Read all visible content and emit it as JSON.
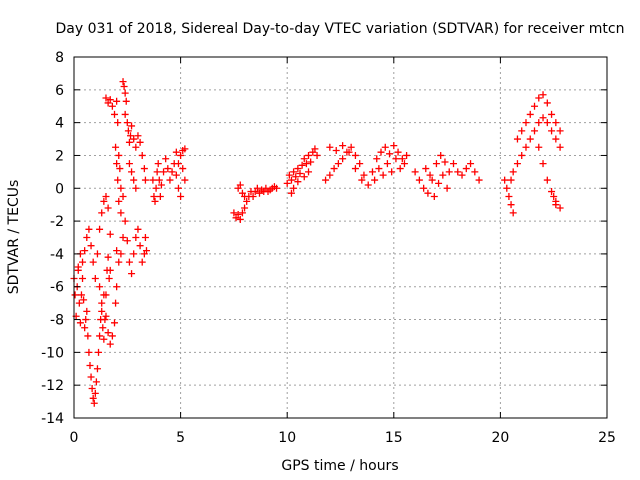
{
  "chart_data": {
    "type": "scatter",
    "title": "Day 031 of 2018, Sidereal Day-to-day VTEC variation (SDTVAR) for receiver mtcn",
    "xlabel": "GPS time / hours",
    "ylabel": "SDTVAR / TECUs",
    "xlim": [
      0,
      25
    ],
    "ylim": [
      -14,
      8
    ],
    "xticks": [
      0,
      5,
      10,
      15,
      20,
      25
    ],
    "xtick_labels": [
      "0",
      "5",
      "10",
      "15",
      "20",
      "25"
    ],
    "yticks": [
      -14,
      -12,
      -10,
      -8,
      -6,
      -4,
      -2,
      0,
      2,
      4,
      6,
      8
    ],
    "ytick_labels": [
      "-14",
      "-12",
      "-10",
      "-8",
      "-6",
      "-4",
      "-2",
      "0",
      "2",
      "4",
      "6",
      "8"
    ],
    "grid": true,
    "marker": "+",
    "color": "#ff0000",
    "series": [
      {
        "name": "SDTVAR",
        "points": [
          [
            0.0,
            -5.5
          ],
          [
            0.05,
            -6.5
          ],
          [
            0.1,
            -7.8
          ],
          [
            0.15,
            -6.0
          ],
          [
            0.2,
            -5.0
          ],
          [
            0.25,
            -7.0
          ],
          [
            0.3,
            -8.2
          ],
          [
            0.35,
            -6.5
          ],
          [
            0.4,
            -5.5
          ],
          [
            0.45,
            -6.8
          ],
          [
            0.5,
            -8.5
          ],
          [
            0.55,
            -8.0
          ],
          [
            0.6,
            -7.5
          ],
          [
            0.65,
            -9.0
          ],
          [
            0.7,
            -10.0
          ],
          [
            0.75,
            -10.8
          ],
          [
            0.8,
            -11.5
          ],
          [
            0.85,
            -12.2
          ],
          [
            0.9,
            -12.8
          ],
          [
            0.95,
            -13.1
          ],
          [
            1.0,
            -12.5
          ],
          [
            1.05,
            -11.8
          ],
          [
            1.1,
            -11.0
          ],
          [
            1.15,
            -10.0
          ],
          [
            1.2,
            -9.0
          ],
          [
            1.25,
            -8.0
          ],
          [
            1.3,
            -7.0
          ],
          [
            1.35,
            -8.5
          ],
          [
            1.4,
            -9.2
          ],
          [
            1.45,
            -8.0
          ],
          [
            1.5,
            -6.5
          ],
          [
            1.55,
            -5.0
          ],
          [
            1.6,
            -4.2
          ],
          [
            1.65,
            -5.5
          ],
          [
            1.7,
            -5.0
          ],
          [
            0.2,
            -4.8
          ],
          [
            0.3,
            -4.0
          ],
          [
            0.4,
            -4.5
          ],
          [
            0.5,
            -3.8
          ],
          [
            0.6,
            -3.0
          ],
          [
            0.7,
            -2.5
          ],
          [
            0.8,
            -3.5
          ],
          [
            0.9,
            -4.5
          ],
          [
            1.0,
            -5.5
          ],
          [
            1.1,
            -4.0
          ],
          [
            1.2,
            -2.5
          ],
          [
            1.3,
            -1.5
          ],
          [
            1.4,
            -0.8
          ],
          [
            1.5,
            -0.5
          ],
          [
            1.6,
            -1.2
          ],
          [
            1.7,
            -2.8
          ],
          [
            1.2,
            -6.0
          ],
          [
            1.3,
            -7.5
          ],
          [
            1.4,
            -6.5
          ],
          [
            1.5,
            -7.8
          ],
          [
            1.6,
            -8.8
          ],
          [
            1.7,
            -9.5
          ],
          [
            1.8,
            -9.0
          ],
          [
            1.9,
            -8.2
          ],
          [
            1.95,
            -7.0
          ],
          [
            2.0,
            -6.0
          ],
          [
            1.5,
            5.5
          ],
          [
            1.6,
            5.2
          ],
          [
            1.7,
            5.4
          ],
          [
            1.8,
            5.0
          ],
          [
            1.9,
            4.5
          ],
          [
            2.0,
            5.3
          ],
          [
            2.05,
            4.0
          ],
          [
            1.95,
            2.5
          ],
          [
            2.0,
            1.5
          ],
          [
            2.05,
            0.5
          ],
          [
            2.1,
            2.0
          ],
          [
            2.15,
            1.2
          ],
          [
            2.2,
            0.0
          ],
          [
            2.1,
            -0.8
          ],
          [
            2.2,
            -1.5
          ],
          [
            2.3,
            -0.5
          ],
          [
            2.3,
            6.5
          ],
          [
            2.35,
            6.2
          ],
          [
            2.4,
            5.8
          ],
          [
            2.45,
            5.3
          ],
          [
            2.4,
            4.5
          ],
          [
            2.5,
            4.0
          ],
          [
            2.55,
            3.5
          ],
          [
            2.6,
            2.8
          ],
          [
            2.65,
            3.2
          ],
          [
            2.7,
            3.8
          ],
          [
            2.8,
            3.0
          ],
          [
            2.9,
            2.5
          ],
          [
            3.0,
            3.2
          ],
          [
            3.1,
            2.8
          ],
          [
            3.2,
            2.0
          ],
          [
            3.3,
            1.2
          ],
          [
            3.35,
            0.5
          ],
          [
            2.6,
            1.5
          ],
          [
            2.7,
            1.0
          ],
          [
            2.8,
            0.5
          ],
          [
            2.9,
            0.0
          ],
          [
            2.0,
            -3.8
          ],
          [
            2.1,
            -4.5
          ],
          [
            2.2,
            -4.0
          ],
          [
            2.3,
            -3.0
          ],
          [
            2.4,
            -2.0
          ],
          [
            2.5,
            -3.2
          ],
          [
            2.6,
            -4.5
          ],
          [
            2.7,
            -5.2
          ],
          [
            2.8,
            -4.0
          ],
          [
            2.9,
            -3.0
          ],
          [
            3.0,
            -2.5
          ],
          [
            3.1,
            -3.5
          ],
          [
            3.2,
            -4.5
          ],
          [
            3.3,
            -4.0
          ],
          [
            3.35,
            -3.0
          ],
          [
            3.4,
            -3.8
          ],
          [
            3.7,
            0.5
          ],
          [
            3.75,
            -0.5
          ],
          [
            3.8,
            -0.8
          ],
          [
            3.85,
            0.0
          ],
          [
            3.9,
            1.0
          ],
          [
            3.95,
            1.5
          ],
          [
            4.0,
            0.5
          ],
          [
            4.05,
            -0.5
          ],
          [
            4.1,
            0.2
          ],
          [
            4.2,
            1.0
          ],
          [
            4.3,
            1.8
          ],
          [
            4.4,
            1.2
          ],
          [
            4.5,
            0.5
          ],
          [
            4.6,
            1.0
          ],
          [
            4.7,
            1.5
          ],
          [
            4.8,
            2.2
          ],
          [
            4.9,
            1.5
          ],
          [
            5.0,
            2.0
          ],
          [
            5.1,
            1.2
          ],
          [
            5.2,
            0.5
          ],
          [
            4.8,
            0.8
          ],
          [
            4.9,
            0.0
          ],
          [
            5.0,
            -0.5
          ],
          [
            5.1,
            2.3
          ],
          [
            5.2,
            2.4
          ],
          [
            7.5,
            -1.5
          ],
          [
            7.6,
            -1.8
          ],
          [
            7.7,
            -1.6
          ],
          [
            7.8,
            -1.9
          ],
          [
            7.9,
            -1.5
          ],
          [
            8.0,
            -1.2
          ],
          [
            8.1,
            -0.8
          ],
          [
            8.2,
            -0.5
          ],
          [
            8.3,
            -0.2
          ],
          [
            8.4,
            -0.5
          ],
          [
            8.5,
            -0.2
          ],
          [
            8.6,
            0.0
          ],
          [
            8.7,
            -0.3
          ],
          [
            8.8,
            -0.1
          ],
          [
            8.9,
            -0.2
          ],
          [
            9.0,
            0.0
          ],
          [
            9.1,
            -0.2
          ],
          [
            9.2,
            -0.1
          ],
          [
            9.3,
            0.0
          ],
          [
            9.4,
            0.1
          ],
          [
            9.5,
            0.0
          ],
          [
            7.7,
            0.0
          ],
          [
            7.8,
            0.2
          ],
          [
            7.9,
            -0.3
          ],
          [
            8.0,
            -0.5
          ],
          [
            10.0,
            0.3
          ],
          [
            10.1,
            0.8
          ],
          [
            10.2,
            0.5
          ],
          [
            10.3,
            1.0
          ],
          [
            10.4,
            0.7
          ],
          [
            10.5,
            1.2
          ],
          [
            10.6,
            0.9
          ],
          [
            10.7,
            1.4
          ],
          [
            10.8,
            1.8
          ],
          [
            10.9,
            1.5
          ],
          [
            11.0,
            2.0
          ],
          [
            11.1,
            1.6
          ],
          [
            11.2,
            2.2
          ],
          [
            11.3,
            2.4
          ],
          [
            11.4,
            2.0
          ],
          [
            10.2,
            -0.3
          ],
          [
            10.3,
            0.0
          ],
          [
            10.5,
            0.4
          ],
          [
            10.8,
            0.7
          ],
          [
            11.0,
            1.0
          ],
          [
            11.8,
            0.5
          ],
          [
            12.0,
            0.8
          ],
          [
            12.2,
            1.2
          ],
          [
            12.4,
            1.5
          ],
          [
            12.6,
            1.8
          ],
          [
            12.8,
            2.2
          ],
          [
            13.0,
            2.5
          ],
          [
            13.2,
            2.0
          ],
          [
            13.4,
            1.5
          ],
          [
            13.6,
            0.8
          ],
          [
            13.8,
            0.2
          ],
          [
            12.0,
            2.5
          ],
          [
            12.3,
            2.3
          ],
          [
            12.6,
            2.6
          ],
          [
            12.9,
            2.2
          ],
          [
            13.2,
            1.2
          ],
          [
            13.5,
            0.5
          ],
          [
            14.0,
            1.0
          ],
          [
            14.2,
            1.8
          ],
          [
            14.4,
            2.2
          ],
          [
            14.6,
            2.5
          ],
          [
            14.8,
            2.1
          ],
          [
            15.0,
            2.6
          ],
          [
            15.2,
            2.2
          ],
          [
            15.4,
            1.8
          ],
          [
            15.5,
            1.5
          ],
          [
            15.6,
            2.0
          ],
          [
            14.1,
            0.5
          ],
          [
            14.3,
            1.2
          ],
          [
            14.5,
            0.8
          ],
          [
            14.7,
            1.5
          ],
          [
            14.9,
            1.0
          ],
          [
            15.1,
            1.8
          ],
          [
            15.3,
            1.2
          ],
          [
            16.0,
            1.0
          ],
          [
            16.2,
            0.5
          ],
          [
            16.4,
            0.0
          ],
          [
            16.6,
            -0.3
          ],
          [
            16.8,
            0.5
          ],
          [
            17.0,
            1.5
          ],
          [
            17.2,
            2.0
          ],
          [
            17.4,
            1.6
          ],
          [
            17.6,
            1.0
          ],
          [
            17.8,
            1.5
          ],
          [
            18.0,
            1.0
          ],
          [
            18.2,
            0.8
          ],
          [
            18.4,
            1.2
          ],
          [
            18.6,
            1.5
          ],
          [
            18.8,
            1.0
          ],
          [
            19.0,
            0.5
          ],
          [
            16.5,
            1.2
          ],
          [
            16.7,
            0.8
          ],
          [
            16.9,
            -0.5
          ],
          [
            17.1,
            0.3
          ],
          [
            17.3,
            0.8
          ],
          [
            17.5,
            0.0
          ],
          [
            20.2,
            0.5
          ],
          [
            20.3,
            0.0
          ],
          [
            20.4,
            -0.5
          ],
          [
            20.5,
            -1.0
          ],
          [
            20.6,
            -1.5
          ],
          [
            20.5,
            0.5
          ],
          [
            20.6,
            1.0
          ],
          [
            20.8,
            1.5
          ],
          [
            21.0,
            2.0
          ],
          [
            21.2,
            2.5
          ],
          [
            21.4,
            3.0
          ],
          [
            21.6,
            3.5
          ],
          [
            21.8,
            4.0
          ],
          [
            22.0,
            4.3
          ],
          [
            22.2,
            4.0
          ],
          [
            22.4,
            3.5
          ],
          [
            22.6,
            3.0
          ],
          [
            22.8,
            2.5
          ],
          [
            20.8,
            3.0
          ],
          [
            21.0,
            3.5
          ],
          [
            21.2,
            4.0
          ],
          [
            21.4,
            4.5
          ],
          [
            21.6,
            5.0
          ],
          [
            21.8,
            5.5
          ],
          [
            22.0,
            5.7
          ],
          [
            22.2,
            5.2
          ],
          [
            22.4,
            4.5
          ],
          [
            22.6,
            4.0
          ],
          [
            22.8,
            3.5
          ],
          [
            21.8,
            2.5
          ],
          [
            22.0,
            1.5
          ],
          [
            22.2,
            0.5
          ],
          [
            22.4,
            -0.2
          ],
          [
            22.6,
            -0.8
          ],
          [
            22.8,
            -1.2
          ],
          [
            22.6,
            -1.0
          ],
          [
            22.5,
            -0.5
          ]
        ]
      }
    ]
  }
}
